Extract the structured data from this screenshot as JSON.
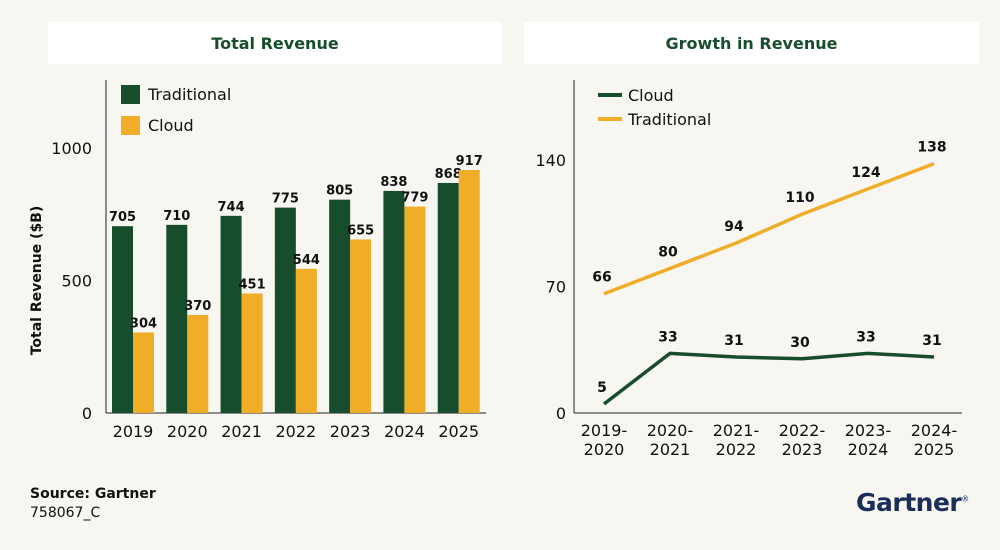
{
  "chart_data": [
    {
      "type": "bar",
      "title": "Total Revenue",
      "ylabel": "Total Revenue ($B)",
      "xlabel": "",
      "ylim": [
        0,
        1000
      ],
      "yticks": [
        0,
        500,
        1000
      ],
      "categories": [
        "2019",
        "2020",
        "2021",
        "2022",
        "2023",
        "2024",
        "2025"
      ],
      "series": [
        {
          "name": "Traditional",
          "color": "#174d2c",
          "values": [
            705,
            710,
            744,
            775,
            805,
            838,
            868
          ]
        },
        {
          "name": "Cloud",
          "color": "#f0ad28",
          "values": [
            304,
            370,
            451,
            544,
            655,
            779,
            917
          ]
        }
      ],
      "legend": "top-left",
      "grid": false
    },
    {
      "type": "line",
      "title": "Growth in Revenue",
      "ylabel": "",
      "xlabel": "",
      "ylim": [
        0,
        140
      ],
      "yticks": [
        0,
        70,
        140
      ],
      "categories": [
        [
          "2019-",
          "2020"
        ],
        [
          "2020-",
          "2021"
        ],
        [
          "2021-",
          "2022"
        ],
        [
          "2022-",
          "2023"
        ],
        [
          "2023-",
          "2024"
        ],
        [
          "2024-",
          "2025"
        ]
      ],
      "series": [
        {
          "name": "Cloud",
          "color": "#174d2c",
          "values": [
            5,
            33,
            31,
            30,
            33,
            31
          ]
        },
        {
          "name": "Traditional",
          "color": "#f0ad28",
          "values": [
            66,
            80,
            94,
            110,
            124,
            138
          ]
        }
      ],
      "legend": "top-left",
      "grid": false
    }
  ],
  "footer": {
    "source": "Source: Gartner",
    "doc_id": "758067_C",
    "logo": "Gartner",
    "logo_mark": "®"
  }
}
